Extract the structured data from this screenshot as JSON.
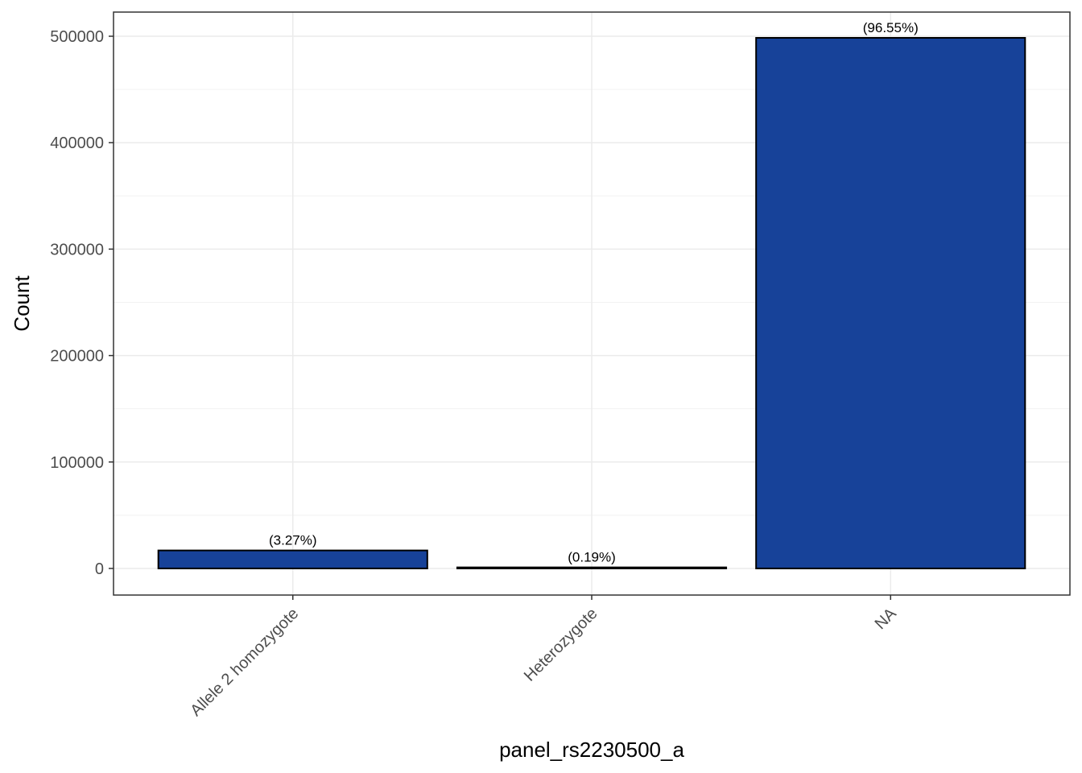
{
  "chart_data": {
    "type": "bar",
    "xlabel": "panel_rs2230500_a",
    "ylabel": "Count",
    "categories": [
      "Allele 2 homozygote",
      "Heterozygote",
      "NA"
    ],
    "values": [
      16900,
      980,
      498500
    ],
    "labels": [
      "(3.27%)",
      "(0.19%)",
      "(96.55%)"
    ],
    "color": "#174299",
    "ylim": [
      -25000,
      522700
    ],
    "yticks": [
      0,
      100000,
      200000,
      300000,
      400000,
      500000
    ],
    "grid": true,
    "minor_grid": true
  }
}
